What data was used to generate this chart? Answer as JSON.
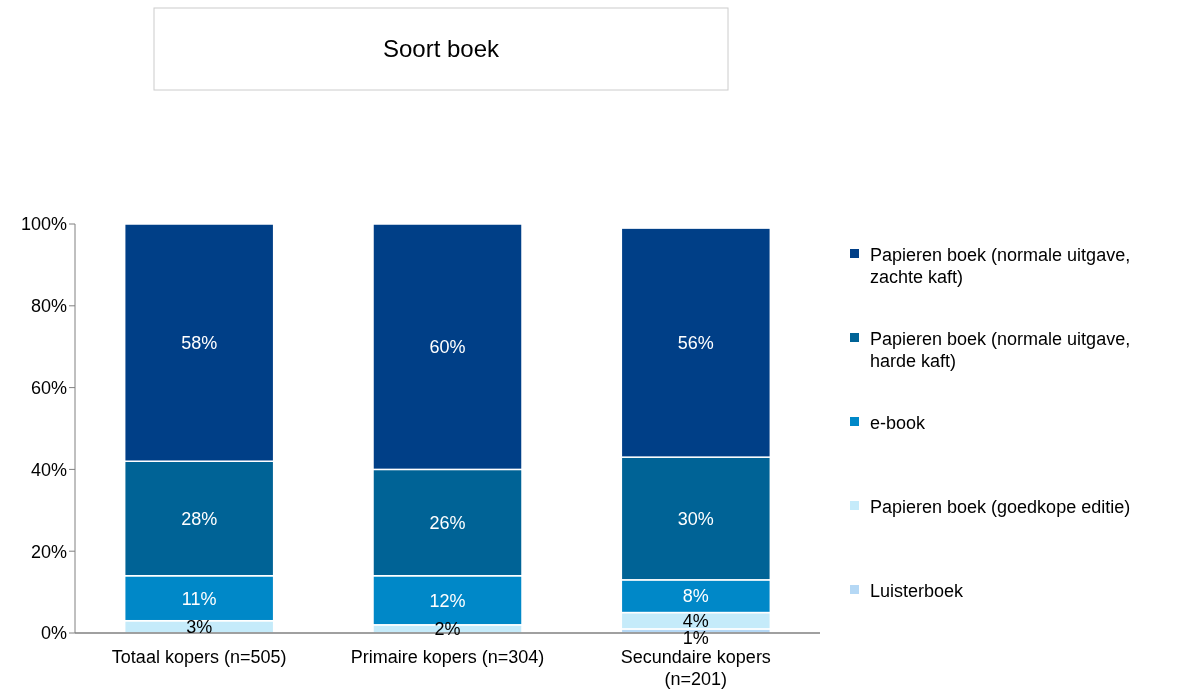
{
  "chart_data": {
    "type": "bar",
    "title": "Soort boek",
    "categories": [
      "Totaal kopers (n=505)",
      "Primaire kopers (n=304)",
      "Secundaire kopers (n=201)"
    ],
    "stacked": true,
    "series": [
      {
        "name": "Luisterboek",
        "color": "#b5d8f5",
        "values": [
          0,
          0,
          1
        ],
        "value_labels": [
          null,
          null,
          "1%"
        ]
      },
      {
        "name": "Papieren boek (goedkope editie)",
        "color": "#c5ebfa",
        "values": [
          3,
          2,
          4
        ],
        "value_labels": [
          "3%",
          "2%",
          "4%"
        ]
      },
      {
        "name": "e-book",
        "color": "#0088c8",
        "values": [
          11,
          12,
          8
        ],
        "value_labels": [
          "11%",
          "12%",
          "8%"
        ]
      },
      {
        "name": "Papieren boek (normale uitgave, harde kaft)",
        "color": "#006396",
        "values": [
          28,
          26,
          30
        ],
        "value_labels": [
          "28%",
          "26%",
          "30%"
        ]
      },
      {
        "name": "Papieren boek (normale uitgave, zachte kaft)",
        "color": "#003f87",
        "values": [
          58,
          60,
          56
        ],
        "value_labels": [
          "58%",
          "60%",
          "56%"
        ]
      }
    ],
    "ylim": [
      0,
      100
    ],
    "yticks": [
      {
        "value": 0,
        "label": "0%"
      },
      {
        "value": 20,
        "label": "20%"
      },
      {
        "value": 40,
        "label": "40%"
      },
      {
        "value": 60,
        "label": "60%"
      },
      {
        "value": 80,
        "label": "80%"
      },
      {
        "value": 100,
        "label": "100%"
      }
    ],
    "legend": "right",
    "grid": false
  }
}
